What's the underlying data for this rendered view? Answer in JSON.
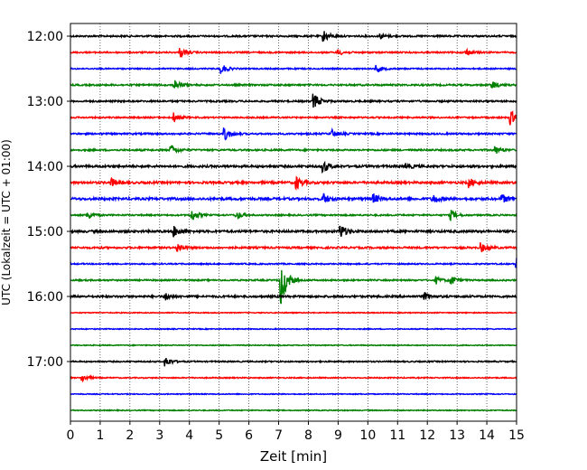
{
  "chart_data": {
    "type": "line",
    "title": "",
    "xlabel": "Zeit  [min]",
    "ylabel": "UTC (Lokalzeit = UTC + 01:00)",
    "xlim": [
      0,
      15
    ],
    "x_ticks": [
      0,
      1,
      2,
      3,
      4,
      5,
      6,
      7,
      8,
      9,
      10,
      11,
      12,
      13,
      14,
      15
    ],
    "x_tick_labels": [
      "0",
      "1",
      "2",
      "3",
      "4",
      "5",
      "6",
      "7",
      "8",
      "9",
      "10",
      "11",
      "12",
      "13",
      "14",
      "15"
    ],
    "y_tick_labels": [
      {
        "trace": 0,
        "label": "12:00"
      },
      {
        "trace": 4,
        "label": "13:00"
      },
      {
        "trace": 8,
        "label": "14:00"
      },
      {
        "trace": 12,
        "label": "15:00"
      },
      {
        "trace": 16,
        "label": "16:00"
      },
      {
        "trace": 20,
        "label": "17:00"
      }
    ],
    "grid": "vertical dotted",
    "colors": [
      "#000000",
      "#ff0000",
      "#0000ff",
      "#008000"
    ],
    "traces": [
      {
        "color": "#000000",
        "noise": 0.9,
        "events": [
          {
            "x": 8.5,
            "amp": 7
          },
          {
            "x": 10.4,
            "amp": 3
          }
        ]
      },
      {
        "color": "#ff0000",
        "noise": 0.8,
        "events": [
          {
            "x": 3.7,
            "amp": 5
          },
          {
            "x": 9.0,
            "amp": 3
          },
          {
            "x": 13.3,
            "amp": 4
          }
        ]
      },
      {
        "color": "#0000ff",
        "noise": 0.7,
        "events": [
          {
            "x": 5.1,
            "amp": 5
          },
          {
            "x": 10.3,
            "amp": 4
          }
        ]
      },
      {
        "color": "#008000",
        "noise": 0.9,
        "events": [
          {
            "x": 3.5,
            "amp": 6
          },
          {
            "x": 14.2,
            "amp": 4
          }
        ]
      },
      {
        "color": "#000000",
        "noise": 0.9,
        "events": [
          {
            "x": 8.2,
            "amp": 8
          }
        ]
      },
      {
        "color": "#ff0000",
        "noise": 0.8,
        "events": [
          {
            "x": 3.5,
            "amp": 5
          },
          {
            "x": 14.8,
            "amp": 8
          }
        ]
      },
      {
        "color": "#0000ff",
        "noise": 0.9,
        "events": [
          {
            "x": 5.2,
            "amp": 7
          },
          {
            "x": 8.8,
            "amp": 4
          }
        ]
      },
      {
        "color": "#008000",
        "noise": 0.9,
        "events": [
          {
            "x": 3.4,
            "amp": 5
          },
          {
            "x": 14.3,
            "amp": 4
          }
        ]
      },
      {
        "color": "#000000",
        "noise": 1.2,
        "events": [
          {
            "x": 8.5,
            "amp": 7
          },
          {
            "x": 11.3,
            "amp": 3
          }
        ]
      },
      {
        "color": "#ff0000",
        "noise": 1.2,
        "events": [
          {
            "x": 1.4,
            "amp": 4
          },
          {
            "x": 7.6,
            "amp": 7
          },
          {
            "x": 13.4,
            "amp": 5
          }
        ]
      },
      {
        "color": "#0000ff",
        "noise": 1.3,
        "events": [
          {
            "x": 8.5,
            "amp": 6
          },
          {
            "x": 10.2,
            "amp": 5
          },
          {
            "x": 12.2,
            "amp": 5
          },
          {
            "x": 14.5,
            "amp": 5
          }
        ]
      },
      {
        "color": "#008000",
        "noise": 0.8,
        "events": [
          {
            "x": 0.6,
            "amp": 4
          },
          {
            "x": 4.1,
            "amp": 6
          },
          {
            "x": 5.6,
            "amp": 4
          },
          {
            "x": 12.8,
            "amp": 5
          }
        ]
      },
      {
        "color": "#000000",
        "noise": 1.2,
        "events": [
          {
            "x": 3.5,
            "amp": 6
          },
          {
            "x": 9.1,
            "amp": 7
          }
        ]
      },
      {
        "color": "#ff0000",
        "noise": 1.0,
        "events": [
          {
            "x": 3.6,
            "amp": 5
          },
          {
            "x": 13.8,
            "amp": 5
          }
        ]
      },
      {
        "color": "#0000ff",
        "noise": 0.7,
        "events": [
          {
            "x": 15.0,
            "amp": 6
          }
        ]
      },
      {
        "color": "#008000",
        "noise": 0.8,
        "events": [
          {
            "x": 7.1,
            "amp": 26
          },
          {
            "x": 12.3,
            "amp": 4
          },
          {
            "x": 12.8,
            "amp": 5
          }
        ]
      },
      {
        "color": "#000000",
        "noise": 1.1,
        "events": [
          {
            "x": 3.2,
            "amp": 4
          },
          {
            "x": 11.9,
            "amp": 4
          }
        ]
      },
      {
        "color": "#ff0000",
        "noise": 0.5,
        "events": []
      },
      {
        "color": "#0000ff",
        "noise": 0.5,
        "events": []
      },
      {
        "color": "#008000",
        "noise": 0.5,
        "events": []
      },
      {
        "color": "#000000",
        "noise": 0.7,
        "events": [
          {
            "x": 3.2,
            "amp": 6
          }
        ]
      },
      {
        "color": "#ff0000",
        "noise": 0.6,
        "events": [
          {
            "x": 0.4,
            "amp": 4
          }
        ]
      },
      {
        "color": "#0000ff",
        "noise": 0.5,
        "events": []
      },
      {
        "color": "#008000",
        "noise": 0.5,
        "events": []
      }
    ]
  }
}
